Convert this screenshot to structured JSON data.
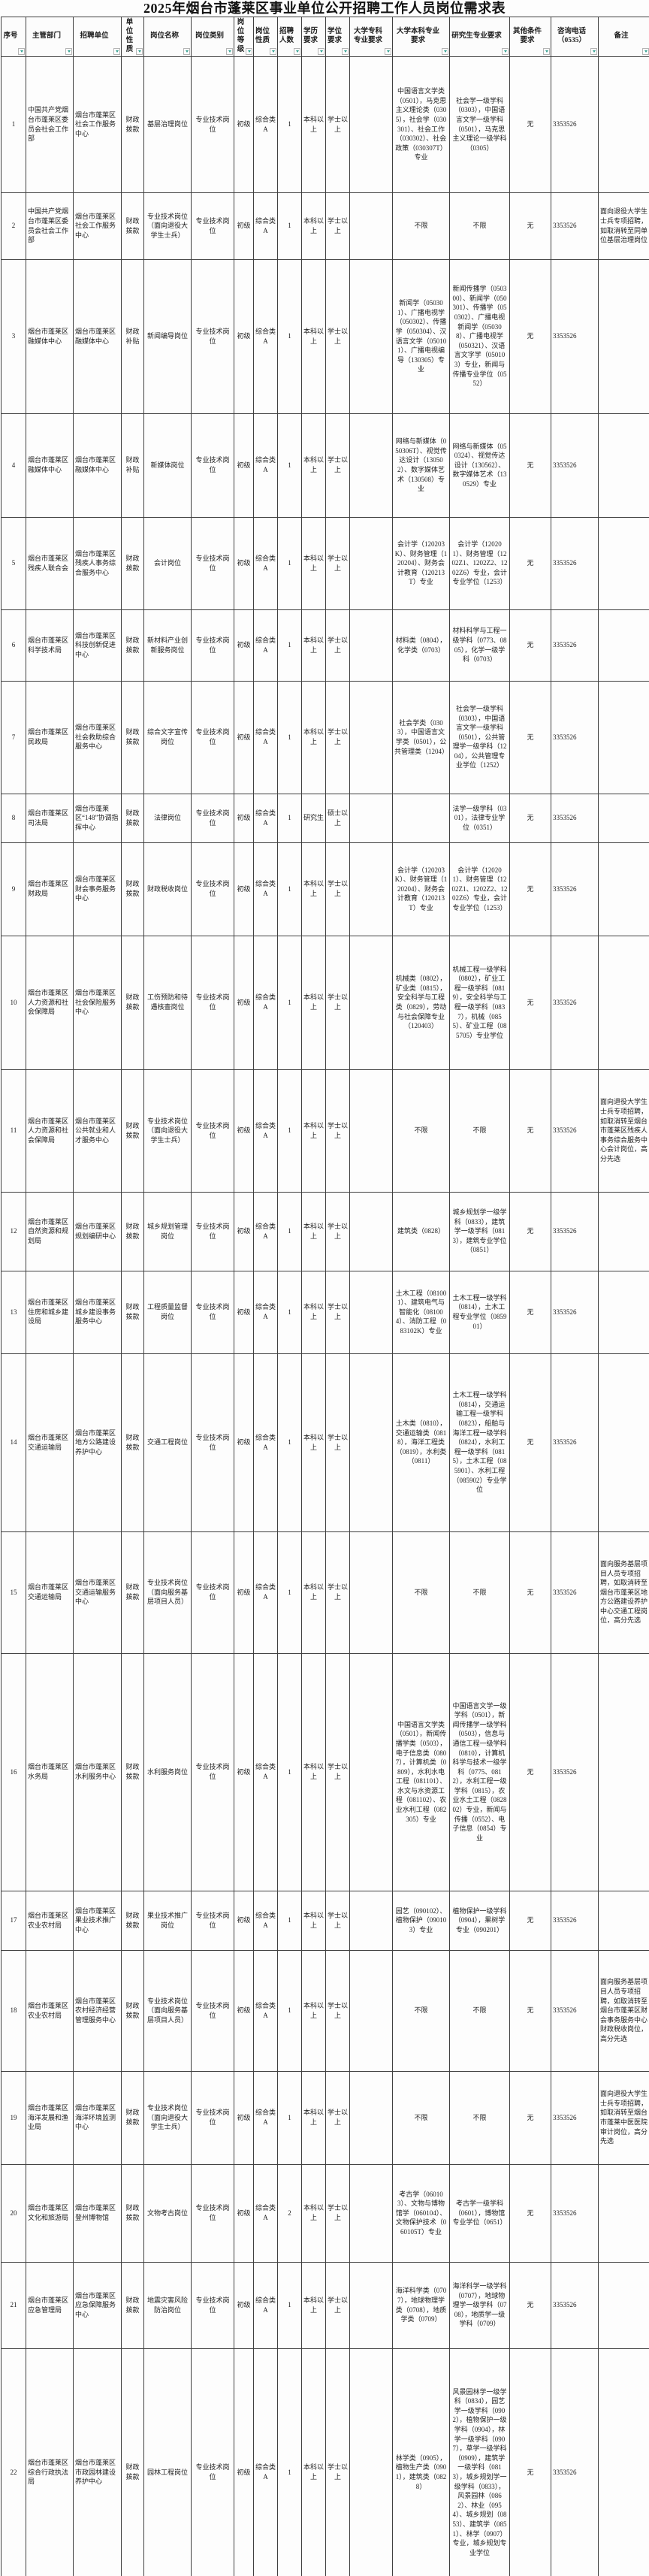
{
  "title": "2025年烟台市蓬莱区事业单位公开招聘工作人员岗位需求表",
  "columns": [
    {
      "key": "index",
      "label": "序号"
    },
    {
      "key": "dept",
      "label": "主管部门"
    },
    {
      "key": "unit",
      "label": "招聘单位"
    },
    {
      "key": "nature",
      "label": "单位性质"
    },
    {
      "key": "post",
      "label": "岗位名称"
    },
    {
      "key": "category",
      "label": "岗位类别"
    },
    {
      "key": "level",
      "label": "岗位等级"
    },
    {
      "key": "type",
      "label": "岗位性质"
    },
    {
      "key": "count",
      "label": "招聘人数"
    },
    {
      "key": "edu",
      "label": "学历要求"
    },
    {
      "key": "degree",
      "label": "学位要求"
    },
    {
      "key": "college",
      "label": "大学专科专业要求"
    },
    {
      "key": "bachelor",
      "label": "大学本科专业要求"
    },
    {
      "key": "graduate",
      "label": "研究生专业要求"
    },
    {
      "key": "other",
      "label": "其他条件要求"
    },
    {
      "key": "phone",
      "label": "咨询电话（0535）"
    },
    {
      "key": "remark",
      "label": "备注"
    }
  ],
  "filter_icon": "filter-dropdown-arrow",
  "accent_color": "#2f9e8e",
  "rows": [
    [
      "1",
      "中国共产党烟台市蓬莱区委员会社会工作部",
      "烟台市蓬莱区社会工作服务中心",
      "财政拨款",
      "基层治理岗位",
      "专业技术岗位",
      "初级",
      "综合类A",
      "1",
      "本科以上",
      "学士以上",
      "",
      "中国语言文学类（0501），马克思主义理论类（0305），社会学（030301）、社会工作（030302）、社会政策（030307T）专业",
      "社会学一级学科（0303），中国语言文学一级学科（0501），马克思主义理论一级学科（0305）",
      "无",
      "3353526",
      ""
    ],
    [
      "2",
      "中国共产党烟台市蓬莱区委员会社会工作部",
      "烟台市蓬莱区社会工作服务中心",
      "财政拨款",
      "专业技术岗位（面向退役大学生士兵）",
      "专业技术岗位",
      "初级",
      "综合类A",
      "1",
      "本科以上",
      "学士以上",
      "",
      "不限",
      "不限",
      "无",
      "3353526",
      "面向退役大学生士兵专项招聘，如取消转至同单位基层治理岗位"
    ],
    [
      "3",
      "烟台市蓬莱区融媒体中心",
      "烟台市蓬莱区融媒体中心",
      "财政补贴",
      "新闻编导岗位",
      "专业技术岗位",
      "初级",
      "综合类A",
      "1",
      "本科以上",
      "学士以上",
      "",
      "新闻学（050301）、广播电视学（050302）、传播学（050304）、汉语言文学（050101）、广播电视编导（130305）专业",
      "新闻传播学（050300）、新闻学（050301）、传播学（050302）、广播电视新闻学（050308）、广播电视学（050321）、汉语言文字学（050103）专业，新闻与传播专业学位（0552）",
      "无",
      "3353526",
      ""
    ],
    [
      "4",
      "烟台市蓬莱区融媒体中心",
      "烟台市蓬莱区融媒体中心",
      "财政补贴",
      "新媒体岗位",
      "专业技术岗位",
      "初级",
      "综合类A",
      "1",
      "本科以上",
      "学士以上",
      "",
      "网络与新媒体（050306T）、视觉传达设计（130502）、数字媒体艺术（130508）专业",
      "网络与新媒体（050324）、视觉传达设计（130562）、数字媒体艺术（130529）专业",
      "无",
      "3353526",
      ""
    ],
    [
      "5",
      "烟台市蓬莱区残疾人联合会",
      "烟台市蓬莱区残疾人事务综合服务中心",
      "财政拨款",
      "会计岗位",
      "专业技术岗位",
      "初级",
      "综合类A",
      "1",
      "本科以上",
      "学士以上",
      "",
      "会计学（120203K）、财务管理（120204）、财务会计教育（120213T）专业",
      "会计学（120201）、财务管理（1202Z1、1202Z2、1202Z6）专业，会计专业学位（1253）",
      "无",
      "3353526",
      ""
    ],
    [
      "6",
      "烟台市蓬莱区科学技术局",
      "烟台市蓬莱区科技创新促进中心",
      "财政拨款",
      "新材料产业创新服务岗位",
      "专业技术岗位",
      "初级",
      "综合类A",
      "1",
      "本科以上",
      "学士以上",
      "",
      "材料类（0804），化学类（0703）",
      "材料科学与工程一级学科（0773、0805），化学一级学科（0703）",
      "无",
      "3353526",
      ""
    ],
    [
      "7",
      "烟台市蓬莱区民政局",
      "烟台市蓬莱区社会救助综合服务中心",
      "财政拨款",
      "综合文字宣传岗位",
      "专业技术岗位",
      "初级",
      "综合类A",
      "1",
      "本科以上",
      "学士以上",
      "",
      "社会学类（0303），中国语言文学类（0501），公共管理类（1204）",
      "社会学一级学科（0303），中国语言文学一级学科（0501），公共管理学一级学科（1204），公共管理专业学位（1252）",
      "无",
      "3353526",
      ""
    ],
    [
      "8",
      "烟台市蓬莱区司法局",
      "烟台市蓬莱区“148”协调指挥中心",
      "财政拨款",
      "法律岗位",
      "专业技术岗位",
      "初级",
      "综合类A",
      "1",
      "研究生",
      "硕士以上",
      "",
      "",
      "法学一级学科（0301），法律专业学位（0351）",
      "无",
      "3353526",
      ""
    ],
    [
      "9",
      "烟台市蓬莱区财政局",
      "烟台市蓬莱区财会事务服务中心",
      "财政拨款",
      "财政税收岗位",
      "专业技术岗位",
      "初级",
      "综合类A",
      "1",
      "本科以上",
      "学士以上",
      "",
      "会计学（120203K）、财务管理（120204）、财务会计教育（120213T）专业",
      "会计学（120201）、财务管理（1202Z1、1202Z2、1202Z6）专业，会计专业学位（1253）",
      "无",
      "3353526",
      ""
    ],
    [
      "10",
      "烟台市蓬莱区人力资源和社会保障局",
      "烟台市蓬莱区社会保险服务中心",
      "财政拨款",
      "工伤预防和待遇核查岗位",
      "专业技术岗位",
      "初级",
      "综合类A",
      "1",
      "本科以上",
      "学士以上",
      "",
      "机械类（0802），矿业类（0815），安全科学与工程类（0829），劳动与社会保障专业（120403）",
      "机械工程一级学科（0802），矿业工程一级学科（0819），安全科学与工程一级学科（0837），机械（0855）、矿业工程（085705）专业学位",
      "无",
      "3353526",
      ""
    ],
    [
      "11",
      "烟台市蓬莱区人力资源和社会保障局",
      "烟台市蓬莱区公共就业和人才服务中心",
      "财政拨款",
      "专业技术岗位（面向退役大学生士兵）",
      "专业技术岗位",
      "初级",
      "综合类A",
      "1",
      "本科以上",
      "学士以上",
      "",
      "不限",
      "不限",
      "无",
      "3353526",
      "面向退役大学生士兵专项招聘，如取消转至烟台市蓬莱区残疾人事务综合服务中心会计岗位，高分先选"
    ],
    [
      "12",
      "烟台市蓬莱区自然资源和规划局",
      "烟台市蓬莱区规划编研中心",
      "财政拨款",
      "城乡规划管理岗位",
      "专业技术岗位",
      "初级",
      "综合类A",
      "1",
      "本科以上",
      "学士以上",
      "",
      "建筑类（0828）",
      "城乡规划学一级学科（0833），建筑学一级学科（0813），建筑专业学位（0851）",
      "无",
      "3353526",
      ""
    ],
    [
      "13",
      "烟台市蓬莱区住房和城乡建设局",
      "烟台市蓬莱区城乡建设事务服务中心",
      "财政拨款",
      "工程质量监督岗位",
      "专业技术岗位",
      "初级",
      "综合类A",
      "1",
      "本科以上",
      "学士以上",
      "",
      "土木工程（081001）、建筑电气与智能化（081004）、消防工程（083102K）专业",
      "土木工程一级学科（0814），土木工程专业学位（085901）",
      "无",
      "3353526",
      ""
    ],
    [
      "14",
      "烟台市蓬莱区交通运输局",
      "烟台市蓬莱区地方公路建设养护中心",
      "财政拨款",
      "交通工程岗位",
      "专业技术岗位",
      "初级",
      "综合类A",
      "1",
      "本科以上",
      "学士以上",
      "",
      "土木类（0810），交通运输类（0818），海洋工程类（0819），水利类（0811）",
      "土木工程一级学科（0814），交通运输工程一级学科（0823），船舶与海洋工程一级学科（0824），水利工程一级学科（0815），土木工程（085901）、水利工程（085902）专业学位",
      "无",
      "3353526",
      ""
    ],
    [
      "15",
      "烟台市蓬莱区交通运输局",
      "烟台市蓬莱区交通运输服务中心",
      "财政拨款",
      "专业技术岗位（面向服务基层项目人员）",
      "专业技术岗位",
      "初级",
      "综合类A",
      "1",
      "本科以上",
      "学士以上",
      "",
      "不限",
      "不限",
      "无",
      "3353526",
      "面向服务基层项目人员专项招聘，如取消转至烟台市蓬莱区地方公路建设养护中心交通工程岗位，高分先选"
    ],
    [
      "16",
      "烟台市蓬莱区水务局",
      "烟台市蓬莱区水利服务中心",
      "财政拨款",
      "水利服务岗位",
      "专业技术岗位",
      "初级",
      "综合类A",
      "1",
      "本科以上",
      "学士以上",
      "",
      "中国语言文学类（0501），新闻传播学类（0503），电子信息类（0807），计算机类（0809），水利水电工程（081101）、水文与水资源工程（081102）、农业水利工程（082305）专业",
      "中国语言文学一级学科（0501），新闻传播学一级学科（0503），信息与通信工程一级学科（0810），计算机科学与技术一级学科（0775、0812），水利工程一级学科（0815），农业水土工程（082802）专业，新闻与传播（0552）、电子信息（0854）专业",
      "无",
      "3353526",
      ""
    ],
    [
      "17",
      "烟台市蓬莱区农业农村局",
      "烟台市蓬莱区果业技术推广中心",
      "财政拨款",
      "果业技术推广岗位",
      "专业技术岗位",
      "初级",
      "综合类A",
      "1",
      "本科以上",
      "学士以上",
      "",
      "园艺（090102）、植物保护（090103）专业",
      "植物保护一级学科（0904），果树学专业（090201）",
      "无",
      "3353526",
      ""
    ],
    [
      "18",
      "烟台市蓬莱区农业农村局",
      "烟台市蓬莱区农村经济经营管理服务中心",
      "财政拨款",
      "专业技术岗位（面向服务基层项目人员）",
      "专业技术岗位",
      "初级",
      "综合类A",
      "1",
      "本科以上",
      "学士以上",
      "",
      "不限",
      "不限",
      "无",
      "3353526",
      "面向服务基层项目人员专项招聘，如取消转至烟台市蓬莱区财会事务服务中心财政税收岗位，高分先选"
    ],
    [
      "19",
      "烟台市蓬莱区海洋发展和渔业局",
      "烟台市蓬莱区海洋环境监测中心",
      "财政拨款",
      "专业技术岗位（面向退役大学生士兵）",
      "专业技术岗位",
      "初级",
      "综合类A",
      "1",
      "本科以上",
      "学士以上",
      "",
      "不限",
      "不限",
      "无",
      "3353526",
      "面向退役大学生士兵专项招聘，如取消转至烟台市蓬莱中医医院审计岗位，高分先选"
    ],
    [
      "20",
      "烟台市蓬莱区文化和旅游局",
      "烟台市蓬莱区登州博物馆",
      "财政拨款",
      "文物考古岗位",
      "专业技术岗位",
      "初级",
      "综合类A",
      "2",
      "本科以上",
      "学士以上",
      "",
      "考古学（060103）、文物与博物馆学（060104）、文物保护技术（060105T）专业",
      "考古学一级学科（0601），博物馆专业学位（0651）",
      "无",
      "3353526",
      ""
    ],
    [
      "21",
      "烟台市蓬莱区应急管理局",
      "烟台市蓬莱区应急保障服务中心",
      "财政拨款",
      "地震灾害风险防治岗位",
      "专业技术岗位",
      "初级",
      "综合类A",
      "1",
      "本科以上",
      "学士以上",
      "",
      "海洋科学类（0707），地球物理学类（0708），地质学类（0709）",
      "海洋科学一级学科（0707），地球物理学一级学科（0708），地质学一级学科（0709）",
      "无",
      "3353526",
      ""
    ],
    [
      "22",
      "烟台市蓬莱区综合行政执法局",
      "烟台市蓬莱区市政园林建设养护中心",
      "财政拨款",
      "园林工程岗位",
      "专业技术岗位",
      "初级",
      "综合类A",
      "1",
      "本科以上",
      "学士以上",
      "",
      "林学类（0905），植物生产类（0901），建筑类（0828）",
      "风景园林学一级学科（0834），园艺学一级学科（0902），植物保护一级学科（0904），林学一级学科（0907），草学一级学科（0909），建筑学一级学科（0813），城乡规划学一级学科（0833），风景园林（0862）、林业（0954）、城乡规划（0853）、建筑学（0851）、林学（0907）专业，城乡规划专业学位",
      "无",
      "3353526",
      ""
    ]
  ]
}
